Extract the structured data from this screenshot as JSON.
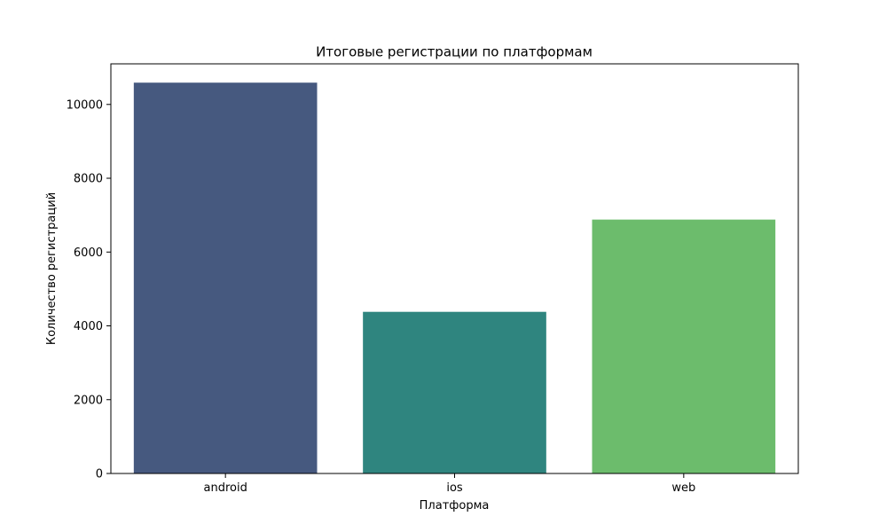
{
  "chart_data": {
    "type": "bar",
    "title": "Итоговые регистрации по платформам",
    "xlabel": "Платформа",
    "ylabel": "Количество регистраций",
    "categories": [
      "android",
      "ios",
      "web"
    ],
    "values": [
      10590,
      4380,
      6880
    ],
    "colors": [
      "#46597f",
      "#2f857f",
      "#6cbc6c"
    ],
    "ylim": [
      0,
      11100
    ],
    "yticks": [
      0,
      2000,
      4000,
      6000,
      8000,
      10000
    ],
    "grid": false,
    "legend": "none"
  }
}
